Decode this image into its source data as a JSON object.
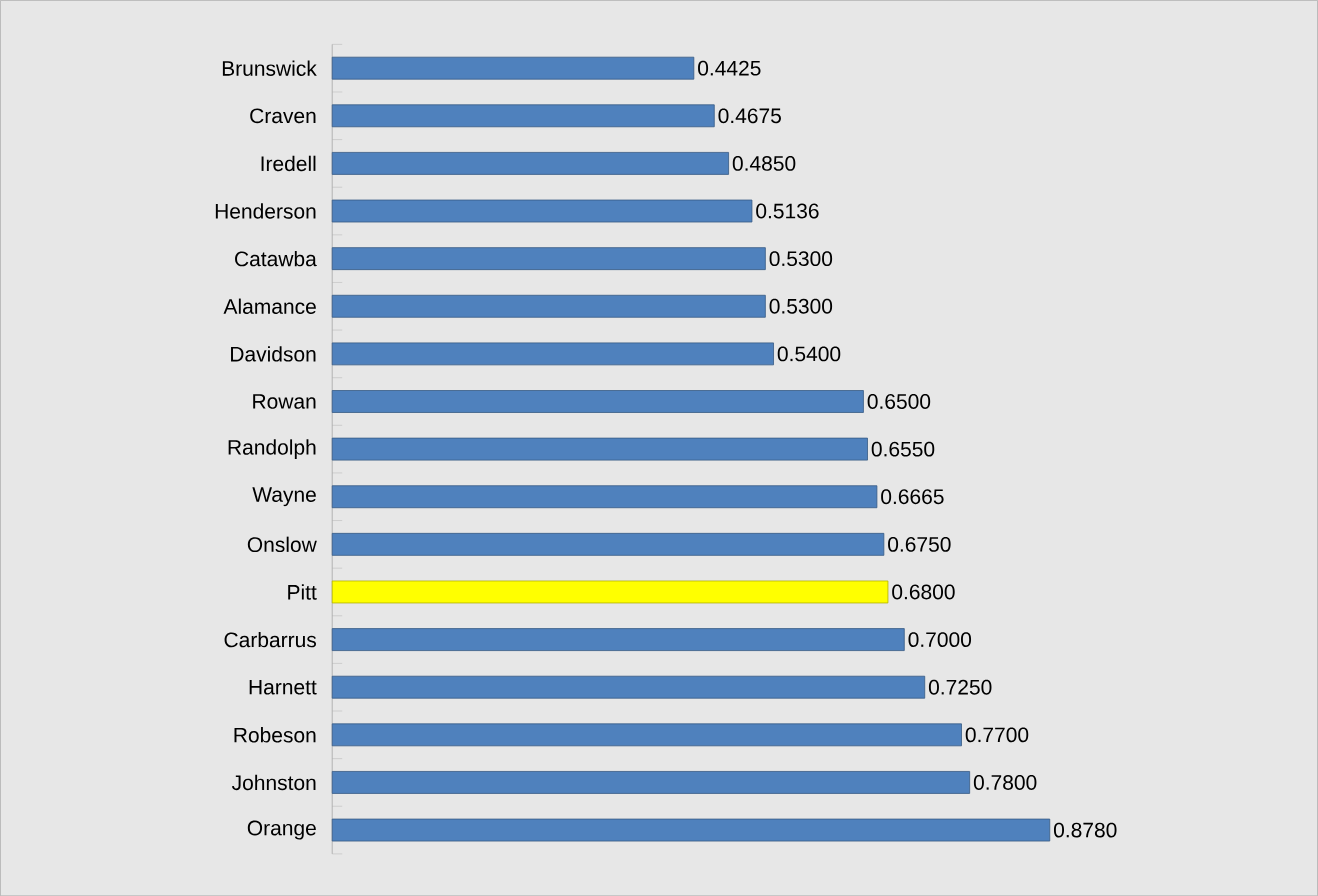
{
  "chart_data": {
    "type": "bar",
    "orientation": "horizontal",
    "categories": [
      "Brunswick",
      "Craven",
      "Iredell",
      "Henderson",
      "Catawba",
      "Alamance",
      "Davidson",
      "Rowan",
      "Randolph",
      "Wayne",
      "Onslow",
      "Pitt",
      "Carbarrus",
      "Harnett",
      "Robeson",
      "Johnston",
      "Orange"
    ],
    "values": [
      0.4425,
      0.4675,
      0.485,
      0.5136,
      0.53,
      0.53,
      0.54,
      0.65,
      0.655,
      0.6665,
      0.675,
      0.68,
      0.7,
      0.725,
      0.77,
      0.78,
      0.878
    ],
    "colors": [
      "#4f81bd",
      "#4f81bd",
      "#4f81bd",
      "#4f81bd",
      "#4f81bd",
      "#4f81bd",
      "#4f81bd",
      "#4f81bd",
      "#4f81bd",
      "#4f81bd",
      "#4f81bd",
      "#ffff00",
      "#4f81bd",
      "#4f81bd",
      "#4f81bd",
      "#4f81bd",
      "#4f81bd"
    ],
    "value_labels": [
      "0.4425",
      "0.4675",
      "0.4850",
      "0.5136",
      "0.5300",
      "0.5300",
      "0.5400",
      "0.6500",
      "0.6550",
      "0.6665",
      "0.6750",
      "0.6800",
      "0.7000",
      "0.7250",
      "0.7700",
      "0.7800",
      "0.8780"
    ]
  }
}
